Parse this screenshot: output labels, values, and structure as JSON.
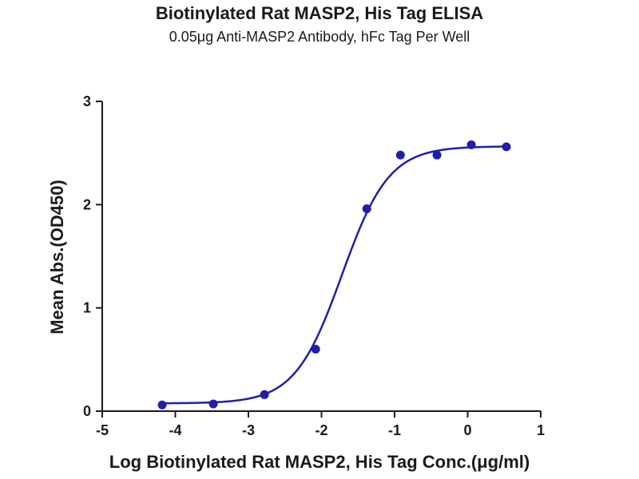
{
  "chart_data": {
    "type": "scatter",
    "title": "Biotinylated Rat MASP2, His Tag ELISA",
    "subtitle": "0.05μg Anti-MASP2 Antibody, hFc Tag Per Well",
    "xlabel": "Log Biotinylated Rat MASP2, His Tag Conc.(μg/ml)",
    "ylabel": "Mean Abs.(OD450)",
    "xlim": [
      -5,
      1
    ],
    "ylim": [
      0,
      3
    ],
    "xticks": [
      "-5",
      "-4",
      "-3",
      "-2",
      "-1",
      "0",
      "1"
    ],
    "yticks": [
      "0",
      "1",
      "2",
      "3"
    ],
    "grid": false,
    "color": "#1f1fa8",
    "series": [
      {
        "x": [
          -4.18,
          -3.48,
          -2.78,
          -2.08,
          -1.38,
          -0.92,
          -0.42,
          0.05,
          0.53
        ],
        "y": [
          0.06,
          0.07,
          0.16,
          0.6,
          1.96,
          2.48,
          2.48,
          2.58,
          2.56
        ]
      }
    ],
    "fit_curve": {
      "type": "4PL",
      "bottom": 0.075,
      "top": 2.565,
      "logEC50": -1.72,
      "hill": 1.35
    }
  }
}
